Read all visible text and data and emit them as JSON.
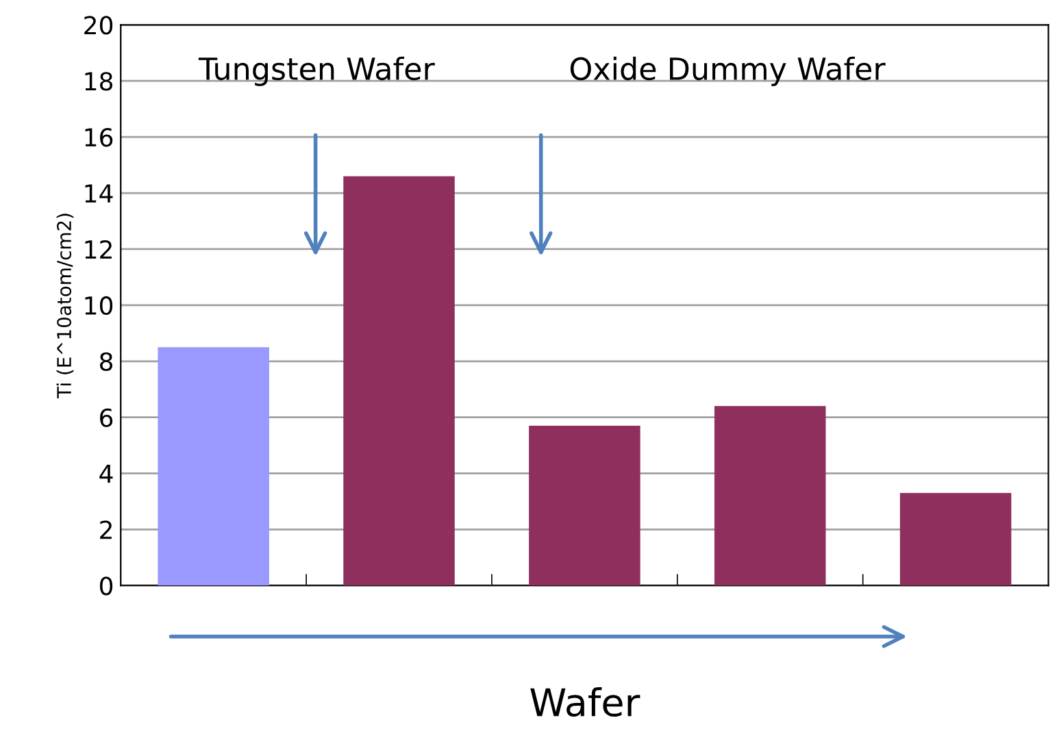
{
  "chart_data": {
    "type": "bar",
    "xlabel": "Wafer",
    "ylabel": "Ti (E^10atom/cm2)",
    "categories": [
      null,
      null,
      null,
      null,
      null
    ],
    "values": [
      8.5,
      14.6,
      5.7,
      6.4,
      3.3
    ],
    "colors": [
      "#9999ff",
      "#8e2f5e",
      "#8e2f5e",
      "#8e2f5e",
      "#8e2f5e"
    ],
    "ylim": [
      0,
      20
    ],
    "yticks": [
      0,
      2,
      4,
      6,
      8,
      10,
      12,
      14,
      16,
      18,
      20
    ],
    "grid": "y",
    "annotations": [
      "Tungsten Wafer",
      "Oxide Dummy Wafer"
    ]
  }
}
